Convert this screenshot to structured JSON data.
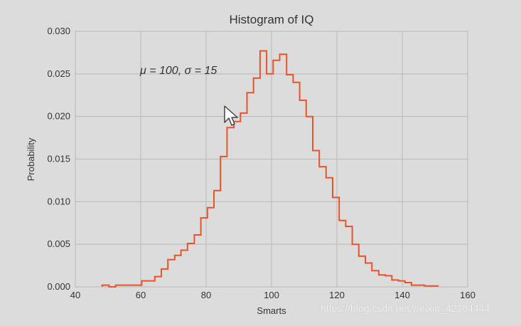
{
  "chart_data": {
    "type": "step-histogram",
    "title": "Histogram of IQ",
    "xlabel": "Smarts",
    "ylabel": "Probability",
    "annotation": "μ = 100,  σ = 15",
    "xlim": [
      40,
      160
    ],
    "ylim": [
      0,
      0.03
    ],
    "xticks": [
      40,
      60,
      80,
      100,
      120,
      140,
      160
    ],
    "xtick_labels": [
      "40",
      "60",
      "80",
      "100",
      "120",
      "140",
      "160"
    ],
    "yticks": [
      0,
      0.005,
      0.01,
      0.015,
      0.02,
      0.025,
      0.03
    ],
    "ytick_labels": [
      "0.000",
      "0.005",
      "0.010",
      "0.015",
      "0.020",
      "0.025",
      "0.030"
    ],
    "grid": true,
    "line_color": "#e8542a",
    "bin_edges": [
      48.2,
      50.3,
      52.3,
      54.3,
      56.3,
      58.3,
      60.3,
      62.3,
      64.3,
      66.3,
      68.3,
      70.4,
      72.3,
      74.3,
      76.4,
      78.4,
      80.4,
      82.4,
      84.4,
      86.4,
      88.5,
      90.5,
      92.5,
      94.5,
      96.5,
      98.5,
      100.5,
      102.5,
      104.6,
      106.6,
      108.6,
      110.6,
      112.6,
      114.6,
      116.7,
      118.7,
      120.7,
      122.7,
      124.7,
      126.7,
      128.7,
      130.7,
      132.8,
      134.8,
      136.8,
      138.8,
      140.8,
      142.8,
      144.8,
      146.8,
      148.9,
      150.9
    ],
    "values": [
      0.0002,
      0.0,
      0.0002,
      0.0002,
      0.0002,
      0.0002,
      0.0007,
      0.0007,
      0.0012,
      0.0021,
      0.0032,
      0.0037,
      0.0043,
      0.0051,
      0.0061,
      0.0081,
      0.0093,
      0.0113,
      0.0153,
      0.0187,
      0.0194,
      0.0204,
      0.0228,
      0.0245,
      0.0277,
      0.025,
      0.0266,
      0.0273,
      0.0249,
      0.024,
      0.0219,
      0.02,
      0.016,
      0.0141,
      0.0128,
      0.0105,
      0.0078,
      0.0071,
      0.005,
      0.0036,
      0.0028,
      0.0019,
      0.0014,
      0.0013,
      0.0008,
      0.0007,
      0.0005,
      0.0002,
      0.0002,
      0.0001,
      0.0001
    ]
  },
  "watermark": "https://blog.csdn.net/weixin_42384444"
}
